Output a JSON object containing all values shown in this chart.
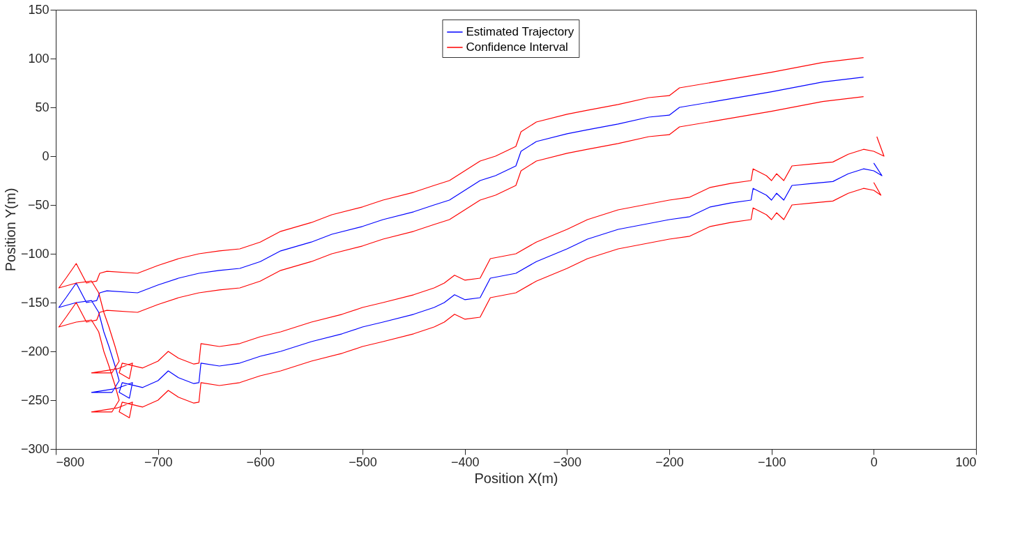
{
  "chart_data": {
    "type": "line",
    "xlabel": "Position X(m)",
    "ylabel": "Position Y(m)",
    "xlim": [
      -800,
      100
    ],
    "xticks": [
      -800,
      -700,
      -600,
      -500,
      -400,
      -300,
      -200,
      -100,
      0,
      100
    ],
    "ylim": [
      -300,
      150
    ],
    "yticks": [
      -300,
      -250,
      -200,
      -150,
      -100,
      -50,
      0,
      50,
      100,
      150
    ],
    "grid": false,
    "legend": "top",
    "line_style": "solid",
    "marker": "none",
    "series": [
      {
        "name": "Estimated Trajectory",
        "color": "#0000ff",
        "x": [
          -10,
          -50,
          -100,
          -150,
          -190,
          -200,
          -220,
          -250,
          -280,
          -300,
          -330,
          -345,
          -350,
          -360,
          -370,
          -385,
          -400,
          -415,
          -430,
          -450,
          -480,
          -500,
          -530,
          -550,
          -580,
          -600,
          -620,
          -640,
          -660,
          -680,
          -700,
          -720,
          -750,
          -757,
          -760,
          -770,
          -775,
          -780,
          -790,
          -797,
          -780,
          -765,
          -758,
          -753,
          -748,
          -742,
          -738,
          -745,
          -765,
          -740,
          -725,
          -728,
          -738,
          -735,
          -715,
          -700,
          -690,
          -680,
          -665,
          -660,
          -658,
          -640,
          -620,
          -600,
          -580,
          -550,
          -520,
          -500,
          -480,
          -450,
          -430,
          -420,
          -410,
          -400,
          -385,
          -375,
          -350,
          -330,
          -300,
          -280,
          -250,
          -200,
          -180,
          -160,
          -140,
          -120,
          -118,
          -105,
          -100,
          -95,
          -88,
          -80,
          -60,
          -40,
          -25,
          -10,
          0,
          8,
          0
        ],
        "values": [
          81,
          76,
          66,
          57,
          50,
          42,
          40,
          33,
          27,
          23,
          15,
          5,
          -10,
          -15,
          -20,
          -25,
          -35,
          -45,
          -50,
          -57,
          -65,
          -72,
          -80,
          -88,
          -97,
          -108,
          -115,
          -117,
          -120,
          -125,
          -132,
          -140,
          -138,
          -140,
          -148,
          -150,
          -140,
          -130,
          -145,
          -155,
          -150,
          -148,
          -160,
          -180,
          -195,
          -215,
          -230,
          -242,
          -242,
          -238,
          -232,
          -248,
          -242,
          -232,
          -237,
          -230,
          -220,
          -227,
          -233,
          -232,
          -212,
          -215,
          -212,
          -205,
          -200,
          -190,
          -182,
          -175,
          -170,
          -162,
          -155,
          -150,
          -142,
          -147,
          -145,
          -125,
          -120,
          -108,
          -95,
          -85,
          -75,
          -65,
          -62,
          -52,
          -48,
          -45,
          -33,
          -40,
          -45,
          -38,
          -45,
          -30,
          -28,
          -26,
          -18,
          -13,
          -15,
          -20,
          -7
        ]
      },
      {
        "name": "Confidence Interval",
        "color": "#ff0000",
        "x": [
          -10,
          -50,
          -100,
          -150,
          -190,
          -200,
          -220,
          -250,
          -280,
          -300,
          -330,
          -345,
          -350,
          -360,
          -370,
          -385,
          -400,
          -415,
          -430,
          -450,
          -480,
          -500,
          -530,
          -550,
          -580,
          -600,
          -620,
          -640,
          -660,
          -680,
          -700,
          -720,
          -750,
          -757,
          -760,
          -770,
          -775,
          -780,
          -790,
          -797,
          -780,
          -765,
          -758,
          -753,
          -748,
          -742,
          -738,
          -745,
          -765,
          -740,
          -725,
          -728,
          -738,
          -735,
          -715,
          -700,
          -690,
          -680,
          -665,
          -660,
          -658,
          -640,
          -620,
          -600,
          -580,
          -550,
          -520,
          -500,
          -480,
          -450,
          -430,
          -420,
          -410,
          -400,
          -385,
          -375,
          -350,
          -330,
          -300,
          -280,
          -250,
          -200,
          -180,
          -160,
          -140,
          -120,
          -118,
          -105,
          -100,
          -95,
          -88,
          -80,
          -60,
          -40,
          -25,
          -10,
          0,
          10,
          3
        ],
        "values": [
          101,
          96,
          86,
          77,
          70,
          62,
          60,
          53,
          47,
          43,
          35,
          25,
          10,
          5,
          0,
          -5,
          -15,
          -25,
          -30,
          -37,
          -45,
          -52,
          -60,
          -68,
          -77,
          -88,
          -95,
          -97,
          -100,
          -105,
          -112,
          -120,
          -118,
          -120,
          -128,
          -130,
          -120,
          -110,
          -125,
          -135,
          -130,
          -128,
          -140,
          -160,
          -175,
          -195,
          -210,
          -222,
          -222,
          -218,
          -212,
          -228,
          -222,
          -212,
          -217,
          -210,
          -200,
          -207,
          -213,
          -212,
          -192,
          -195,
          -192,
          -185,
          -180,
          -170,
          -162,
          -155,
          -150,
          -142,
          -135,
          -130,
          -122,
          -127,
          -125,
          -105,
          -100,
          -88,
          -75,
          -65,
          -55,
          -45,
          -42,
          -32,
          -28,
          -25,
          -13,
          -20,
          -25,
          -18,
          -25,
          -10,
          -8,
          -6,
          2,
          7,
          5,
          0,
          20
        ]
      },
      {
        "color": "#ff0000",
        "x": [
          -10,
          -50,
          -100,
          -150,
          -190,
          -200,
          -220,
          -250,
          -280,
          -300,
          -330,
          -345,
          -350,
          -360,
          -370,
          -385,
          -400,
          -415,
          -430,
          -450,
          -480,
          -500,
          -530,
          -550,
          -580,
          -600,
          -620,
          -640,
          -660,
          -680,
          -700,
          -720,
          -750,
          -757,
          -760,
          -770,
          -775,
          -780,
          -790,
          -797,
          -780,
          -765,
          -758,
          -753,
          -748,
          -742,
          -738,
          -745,
          -765,
          -740,
          -725,
          -728,
          -738,
          -735,
          -715,
          -700,
          -690,
          -680,
          -665,
          -660,
          -658,
          -640,
          -620,
          -600,
          -580,
          -550,
          -520,
          -500,
          -480,
          -450,
          -430,
          -420,
          -410,
          -400,
          -385,
          -375,
          -350,
          -330,
          -300,
          -280,
          -250,
          -200,
          -180,
          -160,
          -140,
          -120,
          -118,
          -105,
          -100,
          -95,
          -88,
          -80,
          -60,
          -40,
          -25,
          -10,
          0,
          7,
          0
        ],
        "values": [
          61,
          56,
          46,
          37,
          30,
          22,
          20,
          13,
          7,
          3,
          -5,
          -15,
          -30,
          -35,
          -40,
          -45,
          -55,
          -65,
          -70,
          -77,
          -85,
          -92,
          -100,
          -108,
          -117,
          -128,
          -135,
          -137,
          -140,
          -145,
          -152,
          -160,
          -158,
          -160,
          -168,
          -170,
          -160,
          -150,
          -165,
          -175,
          -170,
          -168,
          -180,
          -200,
          -215,
          -235,
          -250,
          -262,
          -262,
          -258,
          -252,
          -268,
          -262,
          -252,
          -257,
          -250,
          -240,
          -247,
          -253,
          -252,
          -232,
          -235,
          -232,
          -225,
          -220,
          -210,
          -202,
          -195,
          -190,
          -182,
          -175,
          -170,
          -162,
          -167,
          -165,
          -145,
          -140,
          -128,
          -115,
          -105,
          -95,
          -85,
          -82,
          -72,
          -68,
          -65,
          -53,
          -60,
          -65,
          -58,
          -65,
          -50,
          -48,
          -46,
          -38,
          -33,
          -35,
          -40,
          -27
        ]
      }
    ]
  }
}
